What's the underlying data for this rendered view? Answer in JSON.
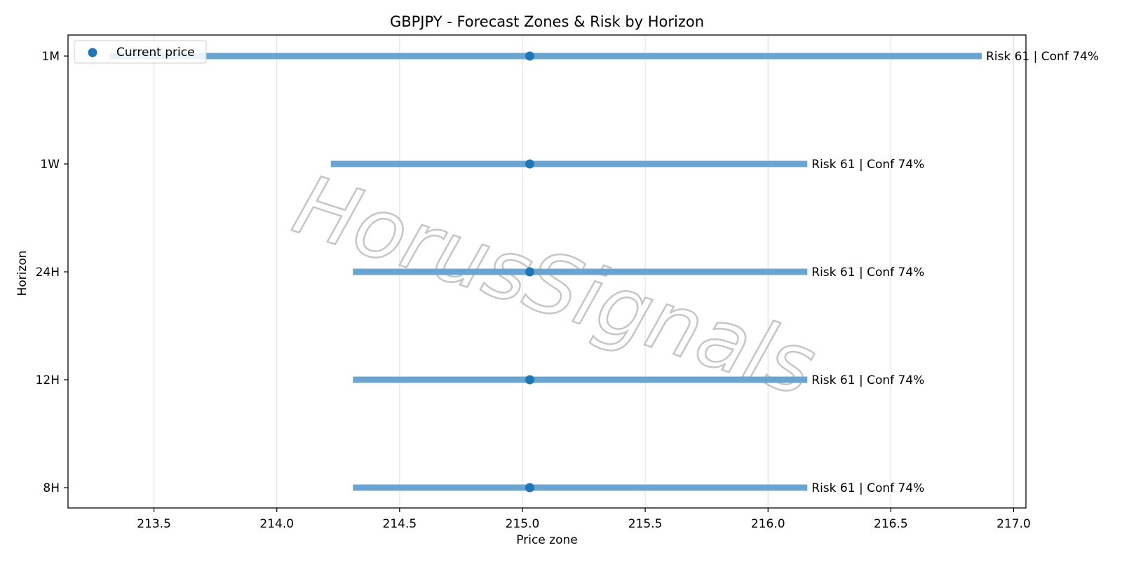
{
  "chart_data": {
    "type": "range",
    "title": "GBPJPY - Forecast Zones & Risk by Horizon",
    "xlabel": "Price zone",
    "ylabel": "Horizon",
    "xlim": [
      213.15,
      217.05
    ],
    "xticks": [
      213.5,
      214.0,
      214.5,
      215.0,
      215.5,
      216.0,
      216.5,
      217.0
    ],
    "xtick_labels": [
      "213.5",
      "214.0",
      "214.5",
      "215.0",
      "215.5",
      "216.0",
      "216.5",
      "217.0"
    ],
    "grid": "vertical",
    "legend": {
      "position": "top-left",
      "entries": [
        "Current price"
      ]
    },
    "current_price": 215.03,
    "rows": [
      {
        "horizon": "1M",
        "low": 213.32,
        "high": 216.87,
        "annotation": "Risk 61 | Conf 74%"
      },
      {
        "horizon": "1W",
        "low": 214.22,
        "high": 216.16,
        "annotation": "Risk 61 | Conf 74%"
      },
      {
        "horizon": "24H",
        "low": 214.31,
        "high": 216.16,
        "annotation": "Risk 61 | Conf 74%"
      },
      {
        "horizon": "12H",
        "low": 214.31,
        "high": 216.16,
        "annotation": "Risk 61 | Conf 74%"
      },
      {
        "horizon": "8H",
        "low": 214.31,
        "high": 216.16,
        "annotation": "Risk 61 | Conf 74%"
      }
    ],
    "colors": {
      "zone": "#6aa5d1",
      "marker": "#1f77b4",
      "grid": "#e3e3e3"
    },
    "watermark": "HorusSignals"
  }
}
